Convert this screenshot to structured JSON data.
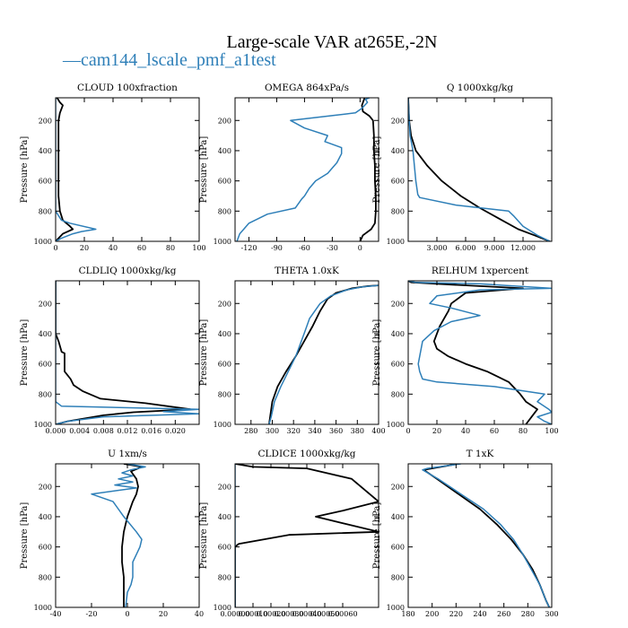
{
  "figure": {
    "title": "Large-scale VAR at265E,-2N",
    "legend_label": "cam144_lscale_pmf_a1test",
    "legend_marker": "—",
    "colors": {
      "black": "#000000",
      "blue": "#2e7fb8"
    }
  },
  "chart_data": [
    {
      "type": "line",
      "title": "CLOUD  100xfraction",
      "xlabel": "",
      "ylabel": "Pressure [hPa]",
      "xlim": [
        0,
        100
      ],
      "ylim": [
        1000,
        50
      ],
      "yticks": [
        200,
        400,
        600,
        800,
        1000
      ],
      "xticks": [
        0,
        20,
        40,
        60,
        80,
        100
      ],
      "xtick_labels": [
        "0",
        "20",
        "40",
        "60",
        "80",
        "100"
      ],
      "series": [
        {
          "name": "black",
          "color": "#000000",
          "x": [
            1,
            3,
            5,
            3,
            2,
            2,
            2,
            2,
            2,
            2,
            3,
            5,
            10,
            12,
            5,
            2,
            0
          ],
          "y": [
            50,
            80,
            100,
            150,
            200,
            300,
            400,
            500,
            600,
            700,
            800,
            860,
            900,
            920,
            950,
            980,
            1000
          ]
        },
        {
          "name": "cam144_lscale_pmf_a1test",
          "color": "#2e7fb8",
          "x": [
            0,
            0,
            0,
            0,
            0,
            0,
            0,
            0,
            0,
            4,
            10,
            28,
            18,
            12,
            4,
            0
          ],
          "y": [
            50,
            100,
            200,
            300,
            400,
            500,
            600,
            700,
            800,
            860,
            880,
            920,
            935,
            950,
            980,
            1000
          ]
        }
      ]
    },
    {
      "type": "line",
      "title": "OMEGA  864xPa/s",
      "xlabel": "",
      "ylabel": "Pressure [hPa]",
      "xlim": [
        -135,
        20
      ],
      "ylim": [
        1000,
        50
      ],
      "yticks": [
        200,
        400,
        600,
        800,
        1000
      ],
      "xticks": [
        -120,
        -90,
        -60,
        -30,
        0
      ],
      "xtick_labels": [
        "-120",
        "-90",
        "-60",
        "-30",
        "0"
      ],
      "series": [
        {
          "name": "black",
          "color": "#000000",
          "x": [
            5,
            2,
            3,
            10,
            14,
            15,
            15,
            16,
            16,
            17,
            17,
            16,
            12,
            3,
            0
          ],
          "y": [
            50,
            100,
            140,
            170,
            200,
            300,
            400,
            500,
            600,
            700,
            800,
            880,
            920,
            960,
            1000
          ]
        },
        {
          "name": "cam144_lscale_pmf_a1test",
          "color": "#2e7fb8",
          "x": [
            10,
            6,
            8,
            5,
            2,
            -5,
            -75,
            -60,
            -35,
            -38,
            -20,
            -20,
            -25,
            -35,
            -48,
            -55,
            -60,
            -63,
            -70,
            -100,
            -120,
            -130,
            -133
          ],
          "y": [
            50,
            60,
            80,
            100,
            120,
            150,
            200,
            250,
            300,
            340,
            380,
            420,
            480,
            550,
            600,
            650,
            700,
            720,
            780,
            820,
            880,
            950,
            1000
          ]
        }
      ]
    },
    {
      "type": "line",
      "title": "Q  1000xkg/kg",
      "xlabel": "",
      "ylabel": "Pressure [hPa]",
      "xlim": [
        0,
        15
      ],
      "ylim": [
        1000,
        50
      ],
      "yticks": [
        200,
        400,
        600,
        800,
        1000
      ],
      "xticks": [
        3,
        6,
        9,
        12
      ],
      "xtick_labels": [
        "3.000",
        "6.000",
        "9.000",
        "12.000"
      ],
      "series": [
        {
          "name": "black",
          "color": "#000000",
          "x": [
            0,
            0.1,
            0.3,
            0.8,
            2.0,
            3.5,
            5.5,
            7.5,
            9.5,
            11.5,
            13.2,
            14.2,
            14.8
          ],
          "y": [
            50,
            200,
            300,
            400,
            500,
            600,
            700,
            780,
            850,
            920,
            960,
            985,
            1000
          ]
        },
        {
          "name": "cam144_lscale_pmf_a1test",
          "color": "#2e7fb8",
          "x": [
            0,
            0.1,
            0.2,
            0.5,
            0.8,
            1.0,
            1.2,
            5.0,
            10.5,
            11.0,
            12.0,
            13.5,
            14.8
          ],
          "y": [
            50,
            200,
            300,
            400,
            600,
            690,
            710,
            760,
            800,
            830,
            900,
            960,
            1000
          ]
        }
      ]
    },
    {
      "type": "line",
      "title": "CLDLIQ  1000xkg/kg",
      "xlabel": "",
      "ylabel": "Pressure [hPa]",
      "xlim": [
        0,
        0.024
      ],
      "ylim": [
        1000,
        50
      ],
      "yticks": [
        200,
        400,
        600,
        800,
        1000
      ],
      "xticks": [
        0,
        0.004,
        0.008,
        0.012,
        0.016,
        0.02
      ],
      "xtick_labels": [
        "0.000",
        "0.004",
        "0.008",
        "0.012",
        "0.016",
        "0.020"
      ],
      "series": [
        {
          "name": "black",
          "color": "#000000",
          "x": [
            0,
            0,
            0,
            0.0005,
            0.001,
            0.0015,
            0.0015,
            0.0025,
            0.003,
            0.0045,
            0.0075,
            0.015,
            0.0225,
            0.013,
            0.008,
            0.005,
            0.002,
            0
          ],
          "y": [
            50,
            200,
            400,
            450,
            520,
            530,
            650,
            700,
            740,
            780,
            830,
            860,
            900,
            920,
            940,
            960,
            980,
            1000
          ]
        },
        {
          "name": "cam144_lscale_pmf_a1test",
          "color": "#2e7fb8",
          "x": [
            0,
            0,
            0,
            0.001,
            0.024,
            0.018,
            0.024,
            0.008,
            0.002,
            0
          ],
          "y": [
            50,
            200,
            850,
            880,
            900,
            915,
            930,
            950,
            980,
            1000
          ]
        }
      ]
    },
    {
      "type": "line",
      "title": "THETA  1.0xK",
      "xlabel": "",
      "ylabel": "Pressure [hPa]",
      "xlim": [
        265,
        400
      ],
      "ylim": [
        1000,
        50
      ],
      "yticks": [
        200,
        400,
        600,
        800,
        1000
      ],
      "xticks": [
        280,
        300,
        320,
        340,
        360,
        380,
        400
      ],
      "xtick_labels": [
        "280",
        "300",
        "320",
        "340",
        "360",
        "380",
        "400"
      ],
      "series": [
        {
          "name": "black",
          "color": "#000000",
          "x": [
            400,
            390,
            375,
            360,
            352,
            345,
            338,
            330,
            322,
            313,
            305,
            300,
            298,
            297
          ],
          "y": [
            80,
            85,
            100,
            130,
            170,
            250,
            350,
            450,
            550,
            650,
            750,
            850,
            950,
            1000
          ]
        },
        {
          "name": "cam144_lscale_pmf_a1test",
          "color": "#2e7fb8",
          "x": [
            400,
            385,
            370,
            355,
            345,
            340,
            335,
            330,
            322,
            315,
            308,
            302,
            299,
            297
          ],
          "y": [
            80,
            90,
            110,
            150,
            200,
            250,
            300,
            400,
            550,
            650,
            750,
            850,
            950,
            1000
          ]
        }
      ]
    },
    {
      "type": "line",
      "title": "RELHUM  1xpercent",
      "xlabel": "",
      "ylabel": "Pressure [hPa]",
      "xlim": [
        0,
        100
      ],
      "ylim": [
        1000,
        50
      ],
      "yticks": [
        200,
        400,
        600,
        800,
        1000
      ],
      "xticks": [
        0,
        20,
        40,
        60,
        80,
        100
      ],
      "xtick_labels": [
        "0",
        "20",
        "40",
        "60",
        "80",
        "100"
      ],
      "series": [
        {
          "name": "black",
          "color": "#000000",
          "x": [
            0,
            2,
            20,
            80,
            40,
            30,
            28,
            25,
            22,
            20,
            18,
            20,
            28,
            40,
            55,
            70,
            78,
            82,
            90,
            86,
            82
          ],
          "y": [
            50,
            60,
            70,
            100,
            130,
            200,
            250,
            300,
            350,
            400,
            450,
            500,
            550,
            600,
            650,
            720,
            800,
            850,
            900,
            950,
            1000
          ]
        },
        {
          "name": "cam144_lscale_pmf_a1test",
          "color": "#2e7fb8",
          "x": [
            0,
            5,
            50,
            100,
            50,
            20,
            15,
            30,
            50,
            30,
            18,
            10,
            8,
            7,
            8,
            10,
            20,
            60,
            95,
            90,
            98,
            100,
            90,
            95,
            100
          ],
          "y": [
            50,
            60,
            70,
            100,
            110,
            150,
            200,
            230,
            280,
            320,
            380,
            450,
            550,
            600,
            650,
            700,
            720,
            750,
            800,
            850,
            900,
            920,
            950,
            980,
            1000
          ]
        }
      ]
    },
    {
      "type": "line",
      "title": "U  1xm/s",
      "xlabel": "",
      "ylabel": "Pressure [hPa]",
      "xlim": [
        -40,
        40
      ],
      "ylim": [
        1000,
        50
      ],
      "yticks": [
        200,
        400,
        600,
        800,
        1000
      ],
      "xticks": [
        -40,
        -20,
        0,
        20,
        40
      ],
      "xtick_labels": [
        "-40",
        "-20",
        "0",
        "20",
        "40"
      ],
      "series": [
        {
          "name": "black",
          "color": "#000000",
          "x": [
            -2,
            8,
            2,
            5,
            6,
            5,
            3,
            0,
            -2,
            -3,
            -3,
            -2,
            -2,
            -2
          ],
          "y": [
            50,
            70,
            100,
            150,
            200,
            250,
            300,
            400,
            500,
            600,
            700,
            800,
            900,
            1000
          ]
        },
        {
          "name": "cam144_lscale_pmf_a1test",
          "color": "#2e7fb8",
          "x": [
            0,
            10,
            2,
            -3,
            3,
            -5,
            3,
            -7,
            5,
            -20,
            -8,
            -2,
            5,
            8,
            7,
            5,
            3,
            3,
            2,
            0,
            -1
          ],
          "y": [
            50,
            70,
            90,
            110,
            130,
            150,
            170,
            190,
            210,
            250,
            300,
            400,
            500,
            550,
            600,
            650,
            700,
            800,
            850,
            900,
            1000
          ]
        }
      ]
    },
    {
      "type": "line",
      "title": "CLDICE  1000xkg/kg",
      "xlabel": "",
      "ylabel": "Pressure [hPa]",
      "xlim": [
        0,
        0.0008
      ],
      "ylim": [
        1000,
        50
      ],
      "yticks": [
        200,
        400,
        600,
        800,
        1000
      ],
      "xticks": [
        0,
        0.0001,
        0.0002,
        0.0003,
        0.0004,
        0.0005,
        0.0006
      ],
      "xtick_labels": [
        "0.00000",
        "0.00010",
        "0.00020",
        "0.00030",
        "0.00040",
        "0.00050",
        "0.00060"
      ],
      "series": [
        {
          "name": "black",
          "color": "#000000",
          "x": [
            0,
            0.0001,
            0.0004,
            0.00065,
            0.0008,
            0.0006,
            0.00045,
            0.0008,
            0.0003,
            2e-05,
            0,
            0
          ],
          "y": [
            50,
            70,
            80,
            150,
            300,
            360,
            400,
            500,
            520,
            580,
            600,
            1000
          ]
        },
        {
          "name": "cam144_lscale_pmf_a1test",
          "color": "#2e7fb8",
          "x": [
            0,
            0
          ],
          "y": [
            50,
            1000
          ]
        }
      ]
    },
    {
      "type": "line",
      "title": "T  1xK",
      "xlabel": "",
      "ylabel": "Pressure [hPa]",
      "xlim": [
        180,
        300
      ],
      "ylim": [
        1000,
        50
      ],
      "yticks": [
        200,
        400,
        600,
        800,
        1000
      ],
      "xticks": [
        180,
        200,
        220,
        240,
        260,
        280,
        300
      ],
      "xtick_labels": [
        "180",
        "200",
        "220",
        "240",
        "260",
        "280",
        "300"
      ],
      "series": [
        {
          "name": "black",
          "color": "#000000",
          "x": [
            222,
            193,
            204,
            222,
            240,
            254,
            266,
            276,
            284,
            290,
            295,
            298
          ],
          "y": [
            50,
            90,
            150,
            250,
            350,
            450,
            550,
            650,
            750,
            850,
            950,
            1000
          ]
        },
        {
          "name": "cam144_lscale_pmf_a1test",
          "color": "#2e7fb8",
          "x": [
            224,
            196,
            192,
            205,
            224,
            243,
            257,
            268,
            276,
            283,
            290,
            295,
            298
          ],
          "y": [
            50,
            80,
            90,
            150,
            250,
            350,
            450,
            550,
            650,
            750,
            850,
            950,
            1000
          ]
        }
      ]
    }
  ]
}
